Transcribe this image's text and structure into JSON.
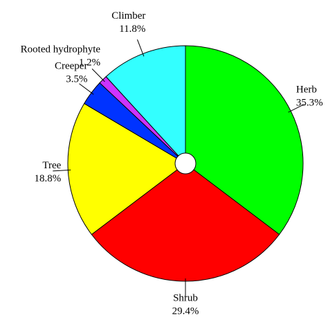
{
  "chart_data": {
    "type": "pie",
    "categories": [
      "Herb",
      "Shrub",
      "Tree",
      "Creeper",
      "Rooted hydrophyte",
      "Climber"
    ],
    "values": [
      35.3,
      29.4,
      18.8,
      3.5,
      1.2,
      11.8
    ],
    "value_labels": [
      "35.3%",
      "29.4%",
      "18.8%",
      "3.5%",
      "1.2%",
      "11.8%"
    ],
    "colors": [
      "#00ff00",
      "#ff0000",
      "#ffff00",
      "#0033ff",
      "#cc33ff",
      "#33ffff"
    ]
  }
}
